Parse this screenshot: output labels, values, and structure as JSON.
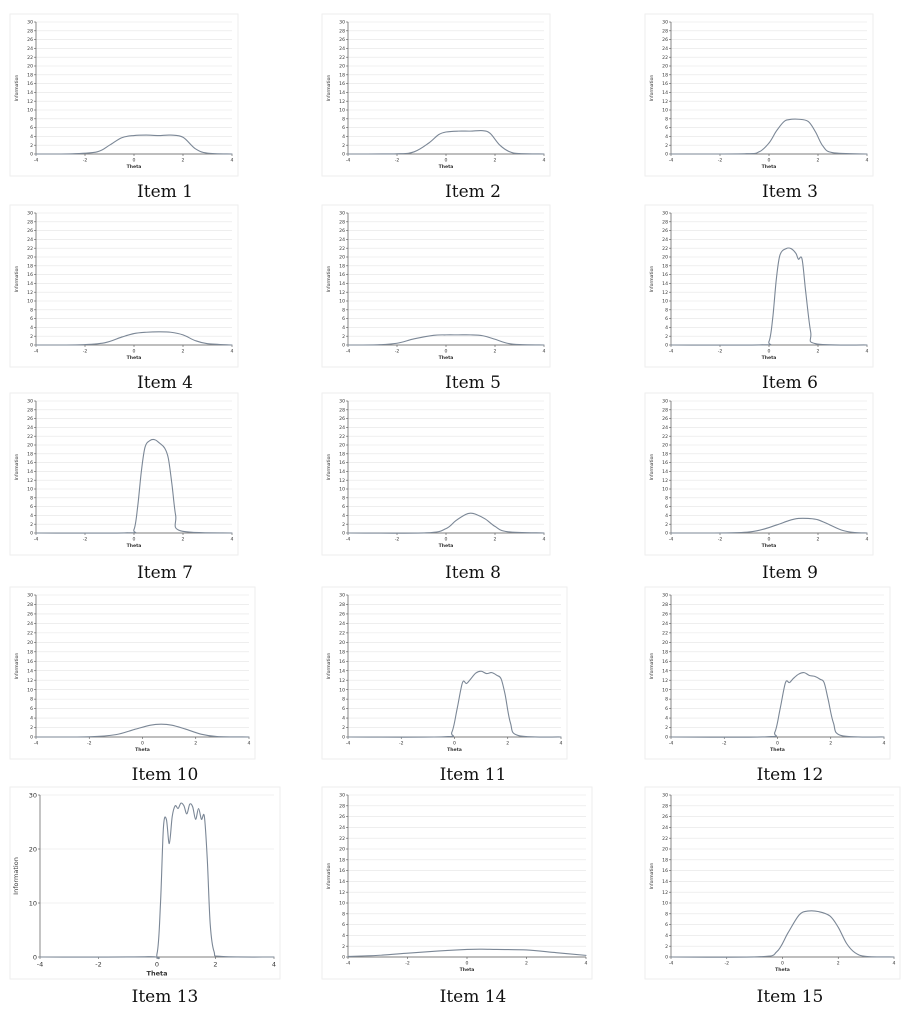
{
  "chart_data": [
    {
      "type": "line",
      "caption": "Item 1",
      "xlabel": "Theta",
      "ylabel": "Information",
      "xlim": [
        -4,
        4
      ],
      "ylim": [
        0,
        30
      ],
      "xticks": [
        "-4",
        "-2",
        "0",
        "2",
        "4"
      ],
      "yticks": [
        "0",
        "2",
        "4",
        "6",
        "8",
        "10",
        "12",
        "14",
        "16",
        "18",
        "20",
        "22",
        "24",
        "26",
        "28",
        "30"
      ],
      "grid": true,
      "x": [
        -4,
        -2.5,
        -1.5,
        -1,
        -0.5,
        0,
        0.5,
        1,
        1.5,
        2,
        2.5,
        3,
        4
      ],
      "y": [
        0,
        0.05,
        0.5,
        2,
        3.7,
        4.2,
        4.3,
        4.2,
        4.3,
        3.8,
        1.2,
        0.2,
        0
      ]
    },
    {
      "type": "line",
      "caption": "Item 2",
      "xlabel": "Theta",
      "ylabel": "Information",
      "xlim": [
        -4,
        4
      ],
      "ylim": [
        0,
        30
      ],
      "xticks": [
        "-4",
        "-2",
        "0",
        "2",
        "4"
      ],
      "yticks": [
        "0",
        "2",
        "4",
        "6",
        "8",
        "10",
        "12",
        "14",
        "16",
        "18",
        "20",
        "22",
        "24",
        "26",
        "28",
        "30"
      ],
      "grid": true,
      "x": [
        -4,
        -2,
        -1.3,
        -0.7,
        -0.3,
        0,
        0.5,
        1,
        1.5,
        1.8,
        2.2,
        2.6,
        3,
        4
      ],
      "y": [
        0,
        0.05,
        0.5,
        2.5,
        4.4,
        5,
        5.2,
        5.2,
        5.3,
        4.7,
        2,
        0.5,
        0.1,
        0
      ]
    },
    {
      "type": "line",
      "caption": "Item 3",
      "xlabel": "Theta",
      "ylabel": "Information",
      "xlim": [
        -4,
        4
      ],
      "ylim": [
        0,
        30
      ],
      "xticks": [
        "-4",
        "-2",
        "0",
        "2",
        "4"
      ],
      "yticks": [
        "0",
        "2",
        "4",
        "6",
        "8",
        "10",
        "12",
        "14",
        "16",
        "18",
        "20",
        "22",
        "24",
        "26",
        "28",
        "30"
      ],
      "grid": true,
      "x": [
        -4,
        -1,
        -0.4,
        0,
        0.3,
        0.6,
        0.8,
        1.2,
        1.6,
        1.9,
        2.2,
        2.6,
        4
      ],
      "y": [
        0,
        0.05,
        0.5,
        2.5,
        5.2,
        7.3,
        7.8,
        7.9,
        7.4,
        5,
        1.8,
        0.3,
        0
      ]
    },
    {
      "type": "line",
      "caption": "Item 4",
      "xlabel": "Theta",
      "ylabel": "Information",
      "xlim": [
        -4,
        4
      ],
      "ylim": [
        0,
        30
      ],
      "xticks": [
        "-4",
        "-2",
        "0",
        "2",
        "4"
      ],
      "yticks": [
        "0",
        "2",
        "4",
        "6",
        "8",
        "10",
        "12",
        "14",
        "16",
        "18",
        "20",
        "22",
        "24",
        "26",
        "28",
        "30"
      ],
      "grid": true,
      "x": [
        -4,
        -2.2,
        -1.2,
        -0.5,
        0,
        0.5,
        1,
        1.5,
        2,
        2.5,
        3,
        4
      ],
      "y": [
        0,
        0.05,
        0.5,
        1.8,
        2.6,
        2.9,
        3,
        2.9,
        2.3,
        1,
        0.3,
        0
      ]
    },
    {
      "type": "line",
      "caption": "Item 5",
      "xlabel": "Theta",
      "ylabel": "Information",
      "xlim": [
        -4,
        4
      ],
      "ylim": [
        0,
        30
      ],
      "xticks": [
        "-4",
        "-2",
        "0",
        "2",
        "4"
      ],
      "yticks": [
        "0",
        "2",
        "4",
        "6",
        "8",
        "10",
        "12",
        "14",
        "16",
        "18",
        "20",
        "22",
        "24",
        "26",
        "28",
        "30"
      ],
      "grid": true,
      "x": [
        -4,
        -2.8,
        -2,
        -1.3,
        -0.5,
        0,
        0.5,
        1,
        1.5,
        2,
        2.5,
        3,
        4
      ],
      "y": [
        0,
        0.05,
        0.4,
        1.4,
        2.2,
        2.3,
        2.3,
        2.3,
        2.1,
        1.3,
        0.4,
        0.1,
        0
      ]
    },
    {
      "type": "line",
      "caption": "Item 6",
      "xlabel": "Theta",
      "ylabel": "Information",
      "xlim": [
        -4,
        4
      ],
      "ylim": [
        0,
        30
      ],
      "xticks": [
        "-4",
        "-2",
        "0",
        "2",
        "4"
      ],
      "yticks": [
        "0",
        "2",
        "4",
        "6",
        "8",
        "10",
        "12",
        "14",
        "16",
        "18",
        "20",
        "22",
        "24",
        "26",
        "28",
        "30"
      ],
      "grid": true,
      "x": [
        -4,
        -0.3,
        0,
        0.15,
        0.3,
        0.45,
        0.7,
        0.9,
        1.1,
        1.2,
        1.35,
        1.5,
        1.7,
        1.9,
        4
      ],
      "y": [
        0,
        0.05,
        0.8,
        6,
        15,
        20.5,
        21.9,
        21.9,
        20.8,
        19.5,
        19.5,
        12,
        3,
        0.3,
        0
      ]
    },
    {
      "type": "line",
      "caption": "Item 7",
      "xlabel": "Theta",
      "ylabel": "Information",
      "xlim": [
        -4,
        4
      ],
      "ylim": [
        0,
        30
      ],
      "xticks": [
        "-4",
        "-2",
        "0",
        "2",
        "4"
      ],
      "yticks": [
        "0",
        "2",
        "4",
        "6",
        "8",
        "10",
        "12",
        "14",
        "16",
        "18",
        "20",
        "22",
        "24",
        "26",
        "28",
        "30"
      ],
      "grid": true,
      "x": [
        -4,
        -0.3,
        0,
        0.15,
        0.3,
        0.45,
        0.65,
        0.85,
        1.05,
        1.25,
        1.4,
        1.55,
        1.7,
        1.9,
        4
      ],
      "y": [
        0,
        0.05,
        0.8,
        6,
        14,
        19.5,
        21,
        21.2,
        20.4,
        19.3,
        17,
        11,
        4,
        0.5,
        0
      ]
    },
    {
      "type": "line",
      "caption": "Item 8",
      "xlabel": "Theta",
      "ylabel": "Information",
      "xlim": [
        -4,
        4
      ],
      "ylim": [
        0,
        30
      ],
      "xticks": [
        "-4",
        "-2",
        "0",
        "2",
        "4"
      ],
      "yticks": [
        "0",
        "2",
        "4",
        "6",
        "8",
        "10",
        "12",
        "14",
        "16",
        "18",
        "20",
        "22",
        "24",
        "26",
        "28",
        "30"
      ],
      "grid": true,
      "x": [
        -4,
        -0.8,
        0,
        0.4,
        0.8,
        1,
        1.2,
        1.6,
        2,
        2.5,
        4
      ],
      "y": [
        0,
        0.05,
        1,
        2.8,
        4.2,
        4.5,
        4.3,
        3.2,
        1.5,
        0.3,
        0
      ]
    },
    {
      "type": "line",
      "caption": "Item 9",
      "xlabel": "Theta",
      "ylabel": "Information",
      "xlim": [
        -4,
        4
      ],
      "ylim": [
        0,
        30
      ],
      "xticks": [
        "-4",
        "-2",
        "0",
        "2",
        "4"
      ],
      "yticks": [
        "0",
        "2",
        "4",
        "6",
        "8",
        "10",
        "12",
        "14",
        "16",
        "18",
        "20",
        "22",
        "24",
        "26",
        "28",
        "30"
      ],
      "grid": true,
      "x": [
        -4,
        -1.5,
        -0.5,
        0.3,
        0.8,
        1.2,
        1.6,
        2,
        2.5,
        3,
        3.5,
        4
      ],
      "y": [
        0,
        0.05,
        0.5,
        1.8,
        2.8,
        3.3,
        3.3,
        3,
        1.8,
        0.6,
        0.1,
        0
      ]
    },
    {
      "type": "line",
      "caption": "Item 10",
      "xlabel": "Theta",
      "ylabel": "Information",
      "xlim": [
        -4,
        4
      ],
      "ylim": [
        0,
        30
      ],
      "xticks": [
        "-4",
        "-2",
        "0",
        "2",
        "4"
      ],
      "yticks": [
        "0",
        "2",
        "4",
        "6",
        "8",
        "10",
        "12",
        "14",
        "16",
        "18",
        "20",
        "22",
        "24",
        "26",
        "28",
        "30"
      ],
      "grid": true,
      "x": [
        -4,
        -2,
        -1,
        -0.3,
        0.3,
        0.7,
        1.1,
        1.6,
        2.2,
        2.8,
        4
      ],
      "y": [
        0,
        0.05,
        0.5,
        1.6,
        2.5,
        2.7,
        2.5,
        1.7,
        0.6,
        0.1,
        0
      ]
    },
    {
      "type": "line",
      "caption": "Item 11",
      "xlabel": "Theta",
      "ylabel": "Information",
      "xlim": [
        -4,
        4
      ],
      "ylim": [
        0,
        30
      ],
      "xticks": [
        "-4",
        "-2",
        "0",
        "2",
        "4"
      ],
      "yticks": [
        "0",
        "2",
        "4",
        "6",
        "8",
        "10",
        "12",
        "14",
        "16",
        "18",
        "20",
        "22",
        "24",
        "26",
        "28",
        "30"
      ],
      "grid": true,
      "x": [
        -4,
        -0.4,
        -0.1,
        0.1,
        0.3,
        0.45,
        0.6,
        0.8,
        1,
        1.2,
        1.4,
        1.6,
        1.75,
        1.9,
        2.1,
        2.4,
        4
      ],
      "y": [
        0,
        0.05,
        1,
        6,
        11.5,
        11.3,
        12.2,
        13.5,
        13.9,
        13.4,
        13.6,
        13,
        12.3,
        9,
        3,
        0.3,
        0
      ]
    },
    {
      "type": "line",
      "caption": "Item 12",
      "xlabel": "Theta",
      "ylabel": "Information",
      "xlim": [
        -4,
        4
      ],
      "ylim": [
        0,
        30
      ],
      "xticks": [
        "-4",
        "-2",
        "0",
        "2",
        "4"
      ],
      "yticks": [
        "0",
        "2",
        "4",
        "6",
        "8",
        "10",
        "12",
        "14",
        "16",
        "18",
        "20",
        "22",
        "24",
        "26",
        "28",
        "30"
      ],
      "grid": true,
      "x": [
        -4,
        -0.4,
        -0.1,
        0.1,
        0.3,
        0.45,
        0.6,
        0.8,
        1,
        1.2,
        1.4,
        1.6,
        1.75,
        1.9,
        2.1,
        2.4,
        4
      ],
      "y": [
        0,
        0.05,
        1,
        6,
        11.5,
        11.5,
        12.4,
        13.3,
        13.6,
        13,
        12.8,
        12.2,
        11.5,
        8,
        3,
        0.3,
        0
      ]
    },
    {
      "type": "line",
      "caption": "Item 13",
      "xlabel": "Theta",
      "ylabel": "Information",
      "xlim": [
        -4,
        4
      ],
      "ylim": [
        0,
        30
      ],
      "xticks": [
        "-4",
        "-2",
        "0",
        "2",
        "4"
      ],
      "yticks": [
        "0",
        "10",
        "20",
        "30"
      ],
      "grid": true,
      "x": [
        -4,
        -0.3,
        0,
        0.12,
        0.22,
        0.32,
        0.42,
        0.52,
        0.62,
        0.72,
        0.82,
        0.92,
        1.02,
        1.12,
        1.22,
        1.32,
        1.42,
        1.52,
        1.62,
        1.72,
        1.82,
        1.95,
        2.2,
        4
      ],
      "y": [
        0,
        0.05,
        0.6,
        10,
        24,
        25.5,
        21,
        26,
        28,
        27.5,
        28.5,
        28,
        26.5,
        28.3,
        27.8,
        25.5,
        27.5,
        25.5,
        26,
        18,
        6,
        1,
        0.1,
        0
      ]
    },
    {
      "type": "line",
      "caption": "Item 14",
      "xlabel": "Theta",
      "ylabel": "Information",
      "xlim": [
        -4,
        4
      ],
      "ylim": [
        0,
        30
      ],
      "xticks": [
        "-4",
        "-2",
        "0",
        "2",
        "4"
      ],
      "yticks": [
        "0",
        "2",
        "4",
        "6",
        "8",
        "10",
        "12",
        "14",
        "16",
        "18",
        "20",
        "22",
        "24",
        "26",
        "28",
        "30"
      ],
      "grid": true,
      "x": [
        -4,
        -3,
        -2,
        -1,
        0,
        0.5,
        1,
        2,
        3,
        4
      ],
      "y": [
        0.1,
        0.3,
        0.7,
        1.1,
        1.4,
        1.45,
        1.4,
        1.3,
        0.8,
        0.3
      ]
    },
    {
      "type": "line",
      "caption": "Item 15",
      "xlabel": "Theta",
      "ylabel": "Information",
      "xlim": [
        -4,
        4
      ],
      "ylim": [
        0,
        30
      ],
      "xticks": [
        "-4",
        "-2",
        "0",
        "2",
        "4"
      ],
      "yticks": [
        "0",
        "2",
        "4",
        "6",
        "8",
        "10",
        "12",
        "14",
        "16",
        "18",
        "20",
        "22",
        "24",
        "26",
        "28",
        "30"
      ],
      "grid": true,
      "x": [
        -4,
        -0.8,
        -0.2,
        0.2,
        0.6,
        0.9,
        1.3,
        1.7,
        2,
        2.3,
        2.6,
        3,
        4
      ],
      "y": [
        0,
        0.05,
        1,
        4.5,
        7.8,
        8.5,
        8.4,
        7.6,
        5.5,
        2.5,
        0.8,
        0.1,
        0
      ]
    }
  ]
}
